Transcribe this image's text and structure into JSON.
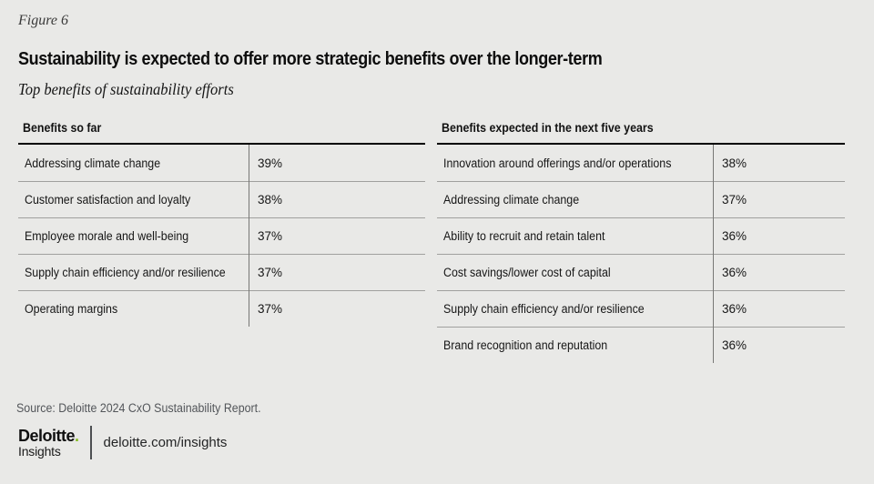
{
  "colors": {
    "background": "#e9e9e7",
    "accent_green": "#86bc25",
    "header_rule": "#000000",
    "row_divider": "#a0a09e",
    "source_text": "#53565a"
  },
  "header": {
    "figure_label": "Figure 6",
    "title": "Sustainability is expected to offer more strategic benefits over the longer-term",
    "subtitle": "Top benefits of sustainability efforts"
  },
  "chart_data": [
    {
      "type": "table",
      "title": "Benefits so far",
      "categories": [
        "Addressing climate change",
        "Customer satisfaction and loyalty",
        "Employee morale and well-being",
        "Supply chain efficiency and/or resilience",
        "Operating margins"
      ],
      "values": [
        "39%",
        "38%",
        "37%",
        "37%",
        "37%"
      ]
    },
    {
      "type": "table",
      "title": "Benefits expected in the next five years",
      "categories": [
        "Innovation around offerings and/or operations",
        "Addressing climate change",
        "Ability to recruit and retain talent",
        "Cost savings/lower cost of capital",
        "Supply chain efficiency and/or resilience",
        "Brand recognition and reputation"
      ],
      "values": [
        "38%",
        "37%",
        "36%",
        "36%",
        "36%",
        "36%"
      ]
    }
  ],
  "footer": {
    "source": "Source: Deloitte 2024 CxO Sustainability Report.",
    "logo_brand": "Deloitte",
    "logo_dot": ".",
    "logo_sub": "Insights",
    "site": "deloitte.com/insights"
  }
}
